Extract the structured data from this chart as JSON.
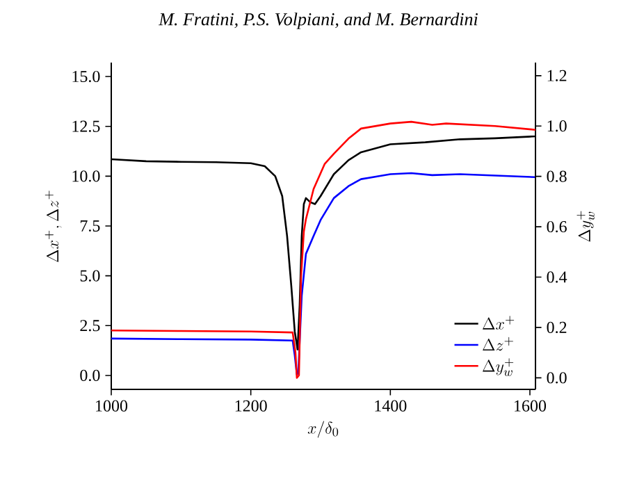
{
  "chart_data": {
    "type": "line",
    "title": "*M. Fratini, P.S. Volpiani, and M. Bernardini*",
    "xlabel": "x/\\delta_0",
    "ylabel": "\\Delta x^+, \\Delta z^+",
    "y2label": "\\Delta y_w^+",
    "xlim": [
      1000,
      1608
    ],
    "xticks": [
      1000,
      1200,
      1400,
      1600
    ],
    "ylim": [
      -0.7,
      15.7
    ],
    "yticks": [
      {
        "value": 0,
        "label": "0.0"
      },
      {
        "value": 2.5,
        "label": "2.5"
      },
      {
        "value": 5,
        "label": "5.0"
      },
      {
        "value": 7.5,
        "label": "7.5"
      },
      {
        "value": 10,
        "label": "10.0"
      },
      {
        "value": 12.5,
        "label": "12.5"
      },
      {
        "value": 15,
        "label": "15.0"
      }
    ],
    "y2lim": [
      -0.046,
      1.252
    ],
    "y2ticks": [
      {
        "value": 0,
        "label": "0.0"
      },
      {
        "value": 0.2,
        "label": "0.2"
      },
      {
        "value": 0.4,
        "label": "0.4"
      },
      {
        "value": 0.6,
        "label": "0.6"
      },
      {
        "value": 0.8,
        "label": "0.8"
      },
      {
        "value": 1.0,
        "label": "1.0"
      },
      {
        "value": 1.2,
        "label": "1.2"
      }
    ],
    "legend": "bottom right",
    "grid": false,
    "series": [
      {
        "name": "\\Delta x^+",
        "color": "#000000",
        "x": [
          1000,
          1050,
          1100,
          1150,
          1200,
          1220,
          1235,
          1245,
          1252,
          1258,
          1263,
          1267,
          1270,
          1273,
          1276,
          1279,
          1285,
          1292,
          1300,
          1319,
          1340,
          1358,
          1400,
          1450,
          1500,
          1550,
          1608
        ],
        "values": [
          10.85,
          10.75,
          10.72,
          10.7,
          10.65,
          10.5,
          10.0,
          9.0,
          7.0,
          4.5,
          2.2,
          1.3,
          3.5,
          7.0,
          8.6,
          8.9,
          8.7,
          8.6,
          9.0,
          10.1,
          10.8,
          11.2,
          11.6,
          11.7,
          11.85,
          11.9,
          12.0
        ]
      },
      {
        "name": "\\Delta z^+",
        "color": "#0000ff",
        "x": [
          1000,
          1100,
          1200,
          1260,
          1263,
          1266,
          1268,
          1270,
          1273,
          1279,
          1290,
          1300,
          1319,
          1340,
          1358,
          1400,
          1430,
          1460,
          1500,
          1608
        ],
        "values": [
          1.85,
          1.82,
          1.8,
          1.75,
          1.0,
          0.05,
          0.1,
          null,
          4.0,
          6.1,
          7.0,
          7.8,
          8.9,
          9.5,
          9.85,
          10.1,
          10.15,
          10.05,
          10.1,
          9.95
        ]
      },
      {
        "name": "\\Delta y_w^+",
        "color": "#ff0000",
        "axis": "y2",
        "x": [
          1000,
          1100,
          1200,
          1260,
          1264,
          1266,
          1269,
          1272,
          1276,
          1279,
          1290,
          1306,
          1319,
          1340,
          1358,
          1400,
          1430,
          1460,
          1480,
          1550,
          1608
        ],
        "values": [
          0.188,
          0.186,
          0.184,
          0.18,
          0.1,
          0.0,
          0.01,
          0.4,
          0.58,
          0.63,
          0.75,
          0.85,
          0.89,
          0.95,
          0.99,
          1.01,
          1.017,
          1.005,
          1.01,
          1.0,
          0.985
        ]
      }
    ]
  }
}
